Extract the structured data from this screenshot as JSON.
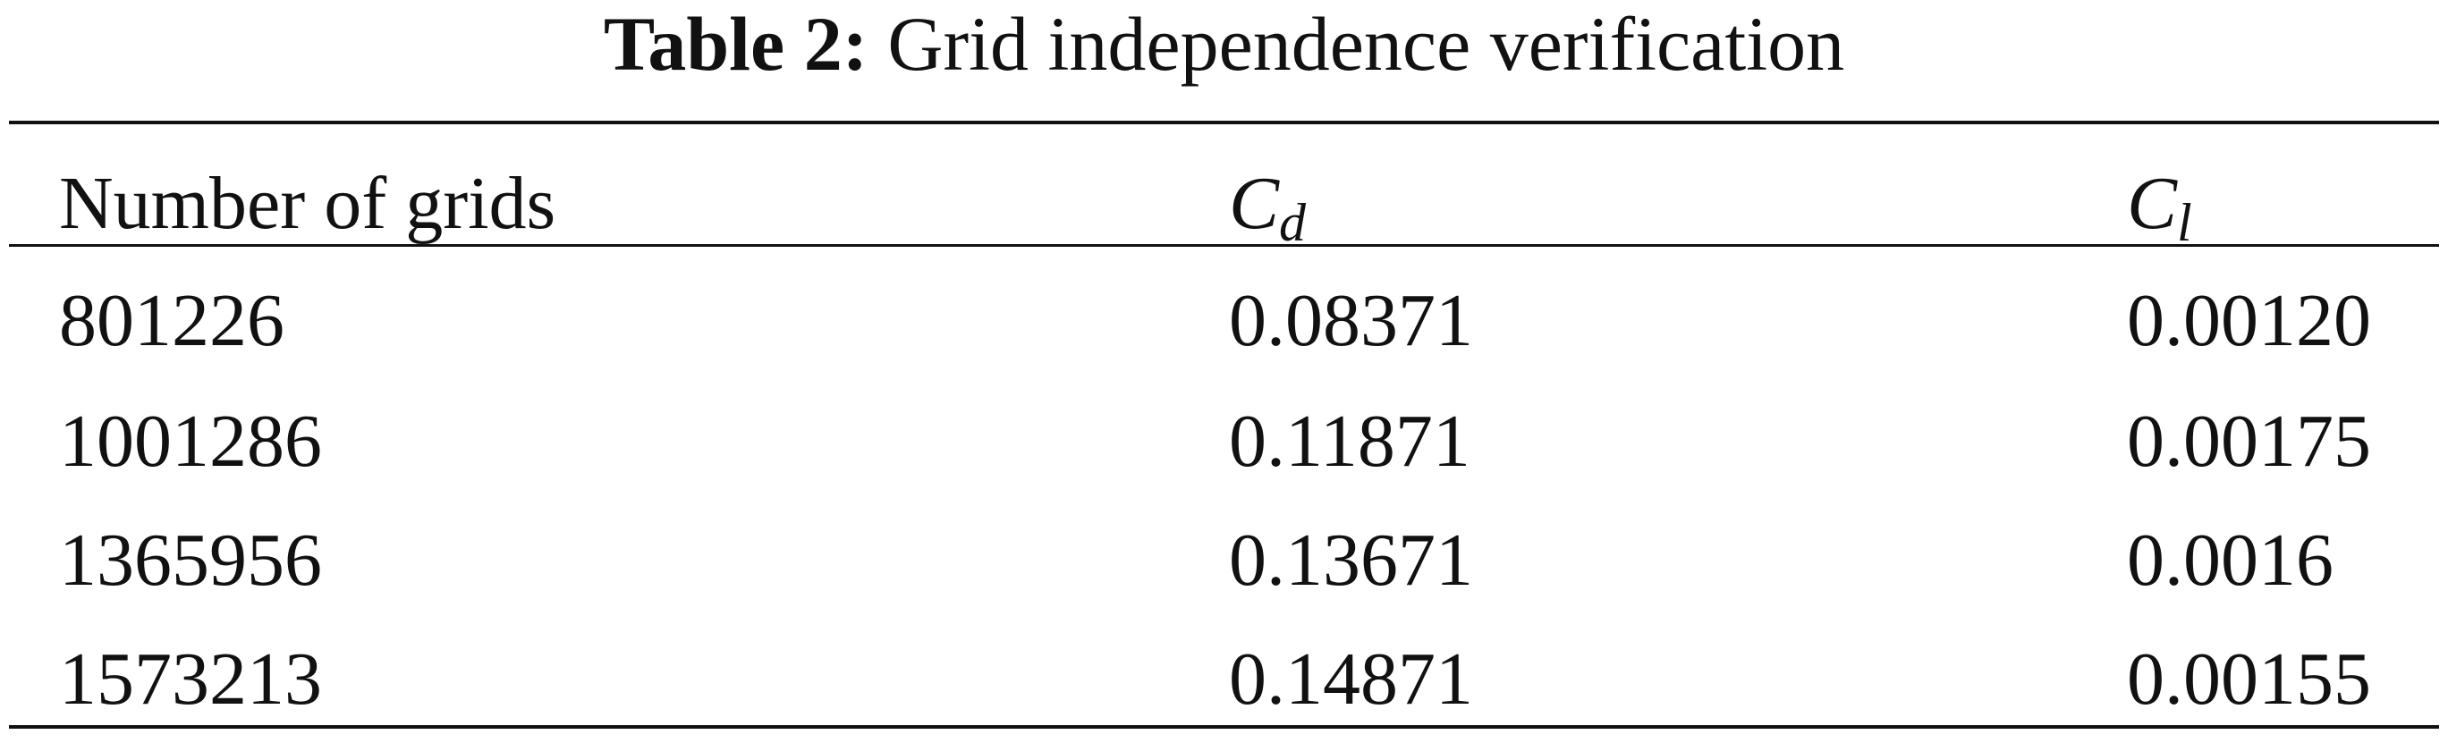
{
  "title": {
    "label": "Table 2:",
    "text": "Grid independence verification"
  },
  "table": {
    "header": [
      {
        "text": "Number of grids"
      },
      {
        "text": "C",
        "sub": "d"
      },
      {
        "text": "C",
        "sub": "l"
      }
    ],
    "rows": [
      [
        "801226",
        "0.08371",
        "0.00120"
      ],
      [
        "1001286",
        "0.11871",
        "0.00175"
      ],
      [
        "1365956",
        "0.13671",
        "0.0016"
      ],
      [
        "1573213",
        "0.14871",
        "0.00155"
      ]
    ]
  }
}
